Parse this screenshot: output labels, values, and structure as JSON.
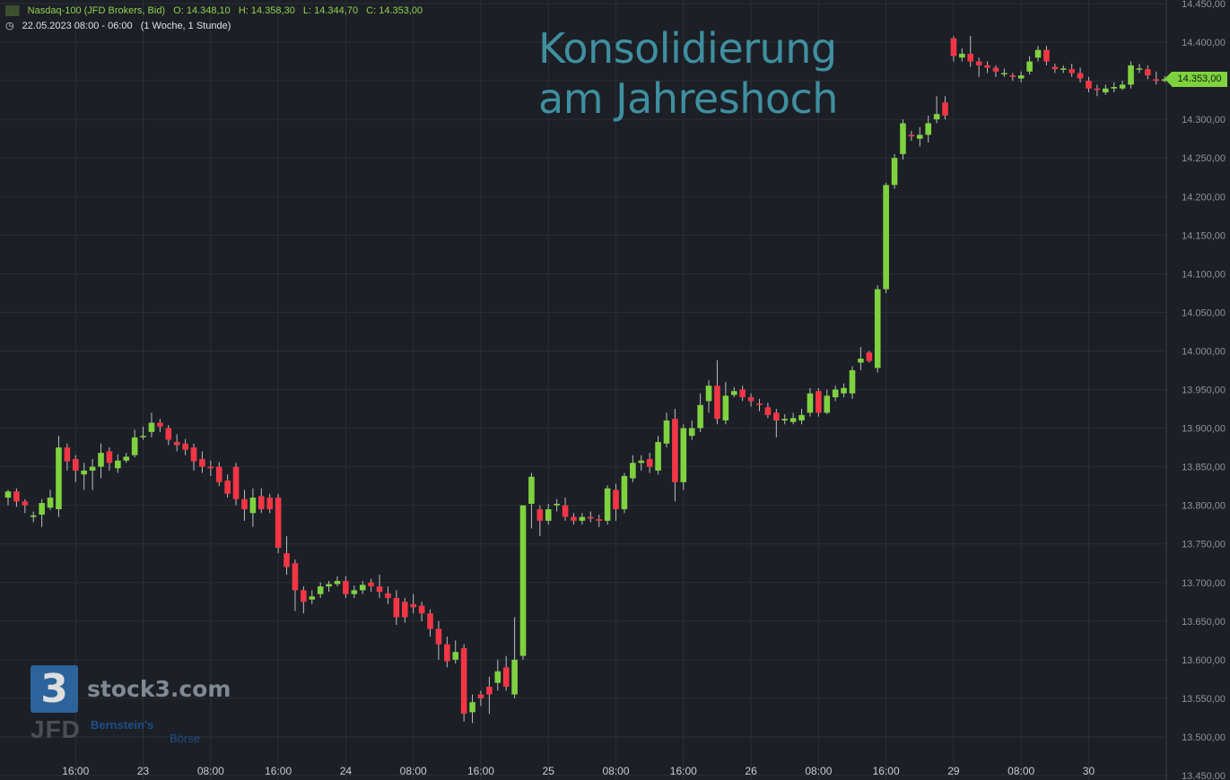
{
  "header": {
    "instrument": "Nasdaq-100 (JFD Brokers, Bid)",
    "open": "O: 14.348,10",
    "high": "H: 14.358,30",
    "low": "L: 14.344,70",
    "close": "C: 14.353,00",
    "date_range": "22.05.2023 08:00 - 06:00",
    "period": "(1 Woche, 1 Stunde)"
  },
  "headline": {
    "line1": "Konsolidierung",
    "line2": "am Jahreshoch"
  },
  "branding": {
    "logo_digit": "3",
    "logo_text": "stock3.com",
    "jfd": "JFD",
    "bernstein": "Bernstein's",
    "boerse": "Börse"
  },
  "last_price_label": "14.353,00",
  "colors": {
    "background": "#1c1f25",
    "up": "#7fd23f",
    "down": "#f23645",
    "grid": "#2b2f37",
    "headline": "#3f8fa0"
  },
  "chart_data": {
    "type": "candlestick",
    "title": "",
    "xlabel": "",
    "ylabel": "",
    "ylim": [
      13450,
      14450
    ],
    "y_ticks": [
      "13.450,00",
      "13.500,00",
      "13.550,00",
      "13.600,00",
      "13.650,00",
      "13.700,00",
      "13.750,00",
      "13.800,00",
      "13.850,00",
      "13.900,00",
      "13.950,00",
      "14.000,00",
      "14.050,00",
      "14.100,00",
      "14.150,00",
      "14.200,00",
      "14.250,00",
      "14.300,00",
      "14.350,00",
      "14.400,00",
      "14.450,00"
    ],
    "y_tick_values": [
      13450,
      13500,
      13550,
      13600,
      13650,
      13700,
      13750,
      13800,
      13850,
      13900,
      13950,
      14000,
      14050,
      14100,
      14150,
      14200,
      14250,
      14300,
      14350,
      14400,
      14450
    ],
    "x_ticks": [
      {
        "label": "16:00",
        "bar": 8
      },
      {
        "label": "23",
        "bar": 16
      },
      {
        "label": "08:00",
        "bar": 24
      },
      {
        "label": "16:00",
        "bar": 32
      },
      {
        "label": "24",
        "bar": 40
      },
      {
        "label": "08:00",
        "bar": 48
      },
      {
        "label": "16:00",
        "bar": 56
      },
      {
        "label": "25",
        "bar": 64
      },
      {
        "label": "08:00",
        "bar": 72
      },
      {
        "label": "16:00",
        "bar": 80
      },
      {
        "label": "26",
        "bar": 88
      },
      {
        "label": "08:00",
        "bar": 96
      },
      {
        "label": "16:00",
        "bar": 104
      },
      {
        "label": "29",
        "bar": 112
      },
      {
        "label": "08:00",
        "bar": 120
      },
      {
        "label": "30",
        "bar": 128
      }
    ],
    "grid": true,
    "last_price": 14353.0,
    "candles": [
      [
        13810,
        13818,
        13800,
        13820
      ],
      [
        13818,
        13805,
        13798,
        13822
      ],
      [
        13805,
        13800,
        13790,
        13808
      ],
      [
        13785,
        13787,
        13778,
        13792
      ],
      [
        13788,
        13803,
        13772,
        13808
      ],
      [
        13797,
        13810,
        13794,
        13820
      ],
      [
        13795,
        13875,
        13785,
        13890
      ],
      [
        13875,
        13857,
        13845,
        13880
      ],
      [
        13860,
        13845,
        13830,
        13865
      ],
      [
        13840,
        13845,
        13820,
        13855
      ],
      [
        13845,
        13850,
        13820,
        13860
      ],
      [
        13850,
        13868,
        13835,
        13880
      ],
      [
        13870,
        13855,
        13845,
        13875
      ],
      [
        13848,
        13858,
        13842,
        13866
      ],
      [
        13858,
        13863,
        13855,
        13868
      ],
      [
        13865,
        13888,
        13862,
        13898
      ],
      [
        13890,
        13890,
        13885,
        13902
      ],
      [
        13895,
        13907,
        13888,
        13920
      ],
      [
        13907,
        13902,
        13895,
        13912
      ],
      [
        13900,
        13885,
        13878,
        13904
      ],
      [
        13882,
        13878,
        13870,
        13892
      ],
      [
        13880,
        13872,
        13865,
        13886
      ],
      [
        13875,
        13857,
        13845,
        13880
      ],
      [
        13860,
        13850,
        13842,
        13870
      ],
      [
        13850,
        13848,
        13838,
        13858
      ],
      [
        13850,
        13830,
        13825,
        13856
      ],
      [
        13832,
        13815,
        13810,
        13840
      ],
      [
        13850,
        13808,
        13800,
        13855
      ],
      [
        13808,
        13795,
        13780,
        13820
      ],
      [
        13790,
        13810,
        13772,
        13822
      ],
      [
        13812,
        13795,
        13790,
        13822
      ],
      [
        13810,
        13795,
        13790,
        13815
      ],
      [
        13810,
        13745,
        13738,
        13815
      ],
      [
        13738,
        13720,
        13710,
        13760
      ],
      [
        13725,
        13690,
        13663,
        13730
      ],
      [
        13690,
        13675,
        13660,
        13695
      ],
      [
        13678,
        13682,
        13672,
        13690
      ],
      [
        13685,
        13695,
        13680,
        13700
      ],
      [
        13695,
        13698,
        13688,
        13702
      ],
      [
        13698,
        13702,
        13695,
        13708
      ],
      [
        13702,
        13685,
        13680,
        13708
      ],
      [
        13685,
        13690,
        13680,
        13696
      ],
      [
        13690,
        13697,
        13685,
        13702
      ],
      [
        13700,
        13695,
        13688,
        13705
      ],
      [
        13695,
        13688,
        13680,
        13710
      ],
      [
        13686,
        13680,
        13672,
        13695
      ],
      [
        13680,
        13655,
        13645,
        13690
      ],
      [
        13675,
        13655,
        13648,
        13680
      ],
      [
        13672,
        13668,
        13660,
        13685
      ],
      [
        13670,
        13660,
        13650,
        13675
      ],
      [
        13660,
        13640,
        13630,
        13665
      ],
      [
        13640,
        13620,
        13600,
        13650
      ],
      [
        13620,
        13598,
        13590,
        13630
      ],
      [
        13600,
        13610,
        13595,
        13625
      ],
      [
        13615,
        13530,
        13520,
        13620
      ],
      [
        13532,
        13545,
        13518,
        13555
      ],
      [
        13555,
        13550,
        13540,
        13560
      ],
      [
        13565,
        13555,
        13530,
        13578
      ],
      [
        13570,
        13585,
        13560,
        13600
      ],
      [
        13590,
        13565,
        13560,
        13605
      ],
      [
        13555,
        13600,
        13550,
        13655
      ],
      [
        13605,
        13800,
        13600,
        13800
      ],
      [
        13802,
        13837,
        13770,
        13842
      ],
      [
        13795,
        13780,
        13760,
        13800
      ],
      [
        13780,
        13795,
        13775,
        13802
      ],
      [
        13800,
        13802,
        13792,
        13808
      ],
      [
        13800,
        13785,
        13780,
        13810
      ],
      [
        13785,
        13780,
        13775,
        13790
      ],
      [
        13780,
        13785,
        13775,
        13790
      ],
      [
        13785,
        13783,
        13778,
        13792
      ],
      [
        13782,
        13780,
        13772,
        13788
      ],
      [
        13780,
        13822,
        13775,
        13826
      ],
      [
        13820,
        13795,
        13780,
        13828
      ],
      [
        13795,
        13838,
        13790,
        13842
      ],
      [
        13835,
        13855,
        13830,
        13865
      ],
      [
        13855,
        13858,
        13845,
        13865
      ],
      [
        13860,
        13850,
        13842,
        13868
      ],
      [
        13845,
        13882,
        13840,
        13890
      ],
      [
        13880,
        13910,
        13875,
        13920
      ],
      [
        13912,
        13830,
        13805,
        13925
      ],
      [
        13830,
        13900,
        13820,
        13905
      ],
      [
        13890,
        13900,
        13885,
        13910
      ],
      [
        13900,
        13930,
        13895,
        13945
      ],
      [
        13935,
        13955,
        13920,
        13962
      ],
      [
        13955,
        13912,
        13905,
        13988
      ],
      [
        13910,
        13942,
        13905,
        13960
      ],
      [
        13943,
        13948,
        13940,
        13953
      ],
      [
        13950,
        13940,
        13935,
        13955
      ],
      [
        13940,
        13935,
        13928,
        13945
      ],
      [
        13932,
        13930,
        13922,
        13938
      ],
      [
        13927,
        13917,
        13913,
        13933
      ],
      [
        13920,
        13910,
        13888,
        13925
      ],
      [
        13910,
        13912,
        13905,
        13918
      ],
      [
        13908,
        13913,
        13905,
        13920
      ],
      [
        13910,
        13917,
        13905,
        13925
      ],
      [
        13920,
        13945,
        13915,
        13952
      ],
      [
        13948,
        13920,
        13915,
        13952
      ],
      [
        13920,
        13942,
        13918,
        13950
      ],
      [
        13940,
        13950,
        13935,
        13955
      ],
      [
        13945,
        13952,
        13940,
        13958
      ],
      [
        13945,
        13975,
        13938,
        13980
      ],
      [
        13985,
        13990,
        13975,
        14005
      ],
      [
        13998,
        13987,
        13985,
        14000
      ],
      [
        13978,
        14080,
        13972,
        14085
      ],
      [
        14080,
        14215,
        14075,
        14218
      ],
      [
        14215,
        14250,
        14210,
        14255
      ],
      [
        14255,
        14295,
        14248,
        14300
      ],
      [
        14280,
        14278,
        14272,
        14285
      ],
      [
        14275,
        14280,
        14265,
        14290
      ],
      [
        14280,
        14295,
        14270,
        14305
      ],
      [
        14300,
        14307,
        14295,
        14330
      ],
      [
        14322,
        14305,
        14300,
        14330
      ],
      [
        14405,
        14382,
        14375,
        14408
      ],
      [
        14380,
        14385,
        14375,
        14392
      ],
      [
        14385,
        14375,
        14368,
        14408
      ],
      [
        14375,
        14370,
        14355,
        14380
      ],
      [
        14370,
        14367,
        14360,
        14375
      ],
      [
        14367,
        14362,
        14355,
        14370
      ],
      [
        14360,
        14360,
        14355,
        14366
      ],
      [
        14357,
        14355,
        14350,
        14360
      ],
      [
        14353,
        14357,
        14348,
        14362
      ],
      [
        14362,
        14375,
        14358,
        14382
      ],
      [
        14380,
        14390,
        14375,
        14395
      ],
      [
        14390,
        14375,
        14370,
        14395
      ],
      [
        14368,
        14365,
        14360,
        14372
      ],
      [
        14365,
        14366,
        14360,
        14370
      ],
      [
        14365,
        14360,
        14355,
        14372
      ],
      [
        14360,
        14353,
        14348,
        14367
      ],
      [
        14350,
        14340,
        14335,
        14355
      ],
      [
        14340,
        14338,
        14330,
        14345
      ],
      [
        14335,
        14340,
        14332,
        14345
      ],
      [
        14340,
        14342,
        14335,
        14348
      ],
      [
        14340,
        14345,
        14338,
        14350
      ],
      [
        14345,
        14370,
        14340,
        14375
      ],
      [
        14365,
        14366,
        14360,
        14372
      ],
      [
        14365,
        14357,
        14352,
        14370
      ],
      [
        14352,
        14350,
        14345,
        14362
      ],
      [
        14350,
        14352,
        14348,
        14356
      ],
      [
        14352,
        14350,
        14346,
        14356
      ],
      [
        14348,
        14346,
        14342,
        14354
      ],
      [
        14346,
        14350,
        14342,
        14356
      ],
      [
        14348,
        14355,
        14345,
        14360
      ]
    ]
  }
}
